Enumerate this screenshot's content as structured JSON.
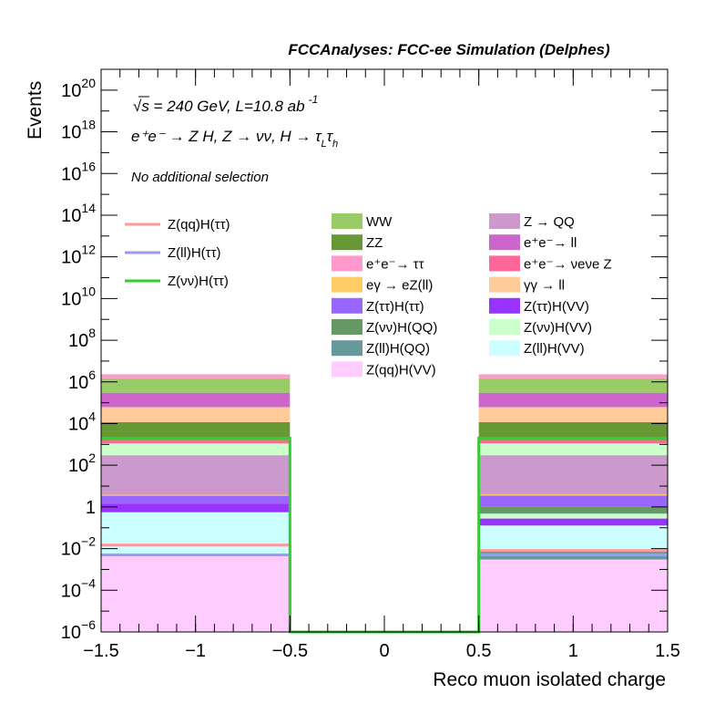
{
  "header": {
    "title": "FCCAnalyses: FCC-ee Simulation (Delphes)",
    "energy_line": "√s = 240 GeV, L=10.8 ab",
    "energy_exp": "-1",
    "process_line": "e⁺e⁻ → Z H, Z → νν, H → τ",
    "process_sub1": "L",
    "process_mid": "τ",
    "process_sub2": "h",
    "selection": "No additional selection"
  },
  "chart_data": {
    "type": "bar",
    "stacked": true,
    "log_y": true,
    "xlabel": "Reco muon isolated charge",
    "ylabel": "Events",
    "xlim": [
      -1.5,
      1.5
    ],
    "ylim": [
      1e-06,
      1e+21
    ],
    "x_ticks": [
      {
        "v": -1.5,
        "label": "−1.5"
      },
      {
        "v": -1,
        "label": "−1"
      },
      {
        "v": -0.5,
        "label": "−0.5"
      },
      {
        "v": 0,
        "label": "0"
      },
      {
        "v": 0.5,
        "label": "0.5"
      },
      {
        "v": 1,
        "label": "1"
      },
      {
        "v": 1.5,
        "label": "1.5"
      }
    ],
    "y_ticks": [
      {
        "exp": -6,
        "base": "10",
        "sup": "−6"
      },
      {
        "exp": -4,
        "base": "10",
        "sup": "−4"
      },
      {
        "exp": -2,
        "base": "10",
        "sup": "−2"
      },
      {
        "exp": 0,
        "base": "1",
        "sup": ""
      },
      {
        "exp": 2,
        "base": "10",
        "sup": "2"
      },
      {
        "exp": 4,
        "base": "10",
        "sup": "4"
      },
      {
        "exp": 6,
        "base": "10",
        "sup": "6"
      },
      {
        "exp": 8,
        "base": "10",
        "sup": "8"
      },
      {
        "exp": 10,
        "base": "10",
        "sup": "10"
      },
      {
        "exp": 12,
        "base": "10",
        "sup": "12"
      },
      {
        "exp": 14,
        "base": "10",
        "sup": "14"
      },
      {
        "exp": 16,
        "base": "10",
        "sup": "16"
      },
      {
        "exp": 18,
        "base": "10",
        "sup": "18"
      },
      {
        "exp": 20,
        "base": "10",
        "sup": "20"
      }
    ],
    "bins": [
      {
        "lo": -1.5,
        "hi": -0.5
      },
      {
        "lo": -0.5,
        "hi": 0.5
      },
      {
        "lo": 0.5,
        "hi": 1.5
      }
    ],
    "stack_series": [
      {
        "name": "Z(qq)H(VV)",
        "color": "#ffccff",
        "values": [
          0.005,
          0,
          0.003
        ]
      },
      {
        "name": "Z(ll)H(QQ)",
        "color": "#669999",
        "values": [
          0,
          0,
          0.005
        ]
      },
      {
        "name": "Z(ll)H(VV)",
        "color": "#ccffff",
        "values": [
          0.55,
          0,
          0.12
        ]
      },
      {
        "name": "Z(ττ)H(VV)",
        "color": "#9933ff",
        "values": [
          0.9,
          0,
          0.15
        ]
      },
      {
        "name": "Z(νν)H(VV)",
        "color": "#ccffcc",
        "values": [
          0,
          0,
          0.2
        ]
      },
      {
        "name": "Z(νν)H(QQ)",
        "color": "#669966",
        "values": [
          0,
          0,
          0.55
        ]
      },
      {
        "name": "Z(ττ)H(ττ)",
        "color": "#9966ff",
        "values": [
          2.0,
          0,
          2.5
        ]
      },
      {
        "name": "eγ → eZ(ll)",
        "color": "#ffcc66",
        "values": [
          0.4,
          0,
          0.5
        ]
      },
      {
        "name": "Z → QQ",
        "color": "#cc99cc",
        "values": [
          300,
          0,
          300
        ]
      },
      {
        "name": "Z(νν)H(VV)",
        "color": "#ccffcc",
        "values": [
          800,
          0,
          800
        ]
      },
      {
        "name": "e⁺e⁻ → νeνe Z",
        "color": "#ff6699",
        "values": [
          500,
          0,
          500
        ]
      },
      {
        "name": "ZZ",
        "color": "#669933",
        "values": [
          10000,
          0,
          10000
        ]
      },
      {
        "name": "γγ → ll",
        "color": "#ffcc99",
        "values": [
          50000,
          0,
          50000
        ]
      },
      {
        "name": "e⁺e⁻ → ll",
        "color": "#cc66cc",
        "values": [
          240000,
          0,
          240000
        ]
      },
      {
        "name": "WW",
        "color": "#99cc66",
        "values": [
          1200000,
          0,
          1200000
        ]
      },
      {
        "name": "e⁺e⁻ → ττ",
        "color": "#ff99cc",
        "values": [
          800000,
          0,
          800000
        ]
      }
    ],
    "line_series": [
      {
        "name": "Z(qq)H(ττ)",
        "color": "#ff9999",
        "values": [
          0.015,
          0,
          0.008
        ]
      },
      {
        "name": "Z(ll)H(ττ)",
        "color": "#9999ff",
        "values": [
          0.005,
          0,
          0.005
        ]
      },
      {
        "name": "Z(νν)H(ττ)",
        "color": "#33cc33",
        "values": [
          2000,
          1e-06,
          2000
        ]
      }
    ],
    "legend_lines": [
      {
        "label": "Z(qq)H(ττ)",
        "color": "#ff9999"
      },
      {
        "label": "Z(ll)H(ττ)",
        "color": "#9999ff"
      },
      {
        "label": "Z(νν)H(ττ)",
        "color": "#33cc33"
      }
    ],
    "legend_col1": [
      {
        "label": "WW",
        "color": "#99cc66"
      },
      {
        "label": "ZZ",
        "color": "#669933"
      },
      {
        "label": "e⁺e⁻→ ττ",
        "color": "#ff99cc"
      },
      {
        "label": "eγ → eZ(ll)",
        "color": "#ffcc66"
      },
      {
        "label": "Z(ττ)H(ττ)",
        "color": "#9966ff"
      },
      {
        "label": "Z(νν)H(QQ)",
        "color": "#669966"
      },
      {
        "label": "Z(ll)H(QQ)",
        "color": "#669999"
      },
      {
        "label": "Z(qq)H(VV)",
        "color": "#ffccff"
      }
    ],
    "legend_col2": [
      {
        "label": "Z → QQ",
        "color": "#cc99cc"
      },
      {
        "label": "e⁺e⁻→ ll",
        "color": "#cc66cc"
      },
      {
        "label": "e⁺e⁻→ νeνe Z",
        "color": "#ff6699"
      },
      {
        "label": "γγ → ll",
        "color": "#ffcc99"
      },
      {
        "label": "Z(ττ)H(VV)",
        "color": "#9933ff"
      },
      {
        "label": "Z(νν)H(VV)",
        "color": "#ccffcc"
      },
      {
        "label": "Z(ll)H(VV)",
        "color": "#ccffff"
      }
    ]
  }
}
